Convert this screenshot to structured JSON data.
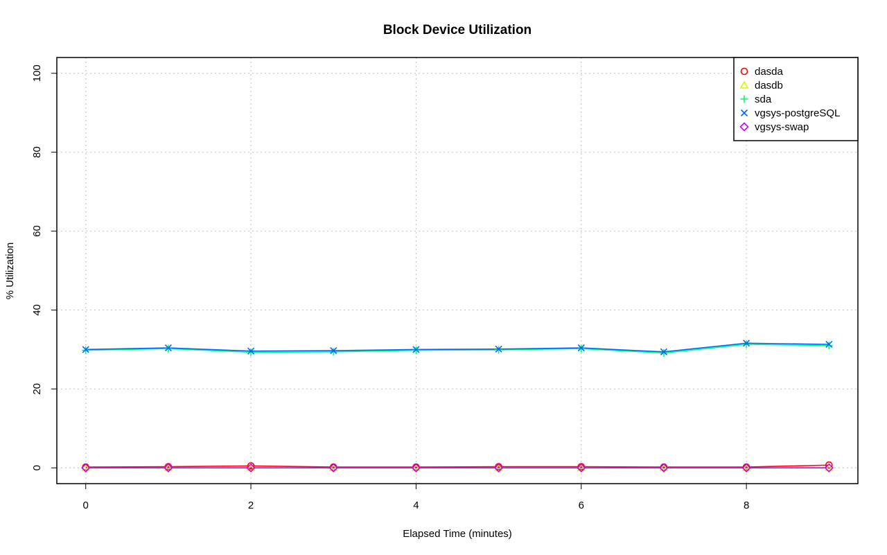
{
  "chart_data": {
    "type": "line",
    "title": "Block Device Utilization",
    "xlabel": "Elapsed Time (minutes)",
    "ylabel": "% Utilization",
    "xlim": [
      -0.35,
      9.35
    ],
    "ylim": [
      -4,
      104
    ],
    "xticks": [
      0,
      2,
      4,
      6,
      8
    ],
    "yticks": [
      0,
      20,
      40,
      60,
      80,
      100
    ],
    "grid": true,
    "legend_position": "top-right",
    "x": [
      0,
      1,
      2,
      3,
      4,
      5,
      6,
      7,
      8,
      9
    ],
    "series": [
      {
        "name": "dasda",
        "color": "#ff0000",
        "marker": "circle",
        "values": [
          0.2,
          0.3,
          0.5,
          0.2,
          0.2,
          0.3,
          0.3,
          0.2,
          0.2,
          0.7
        ]
      },
      {
        "name": "dasdb",
        "color": "#ccff00",
        "marker": "triangle",
        "values": [
          0.0,
          0.0,
          0.0,
          0.0,
          0.0,
          0.0,
          0.0,
          0.0,
          0.0,
          0.0
        ]
      },
      {
        "name": "sda",
        "color": "#00ff66",
        "marker": "plus",
        "values": [
          29.8,
          30.2,
          29.3,
          29.4,
          29.8,
          29.9,
          30.2,
          29.1,
          31.3,
          31.0
        ]
      },
      {
        "name": "vgsys-postgreSQL",
        "color": "#0066ff",
        "marker": "cross",
        "values": [
          30.0,
          30.4,
          29.6,
          29.7,
          30.0,
          30.1,
          30.4,
          29.4,
          31.6,
          31.3
        ]
      },
      {
        "name": "vgsys-swap",
        "color": "#cc00ff",
        "marker": "diamond",
        "values": [
          0.0,
          0.0,
          0.0,
          0.0,
          0.0,
          0.0,
          0.0,
          0.0,
          0.0,
          0.0
        ]
      }
    ]
  }
}
